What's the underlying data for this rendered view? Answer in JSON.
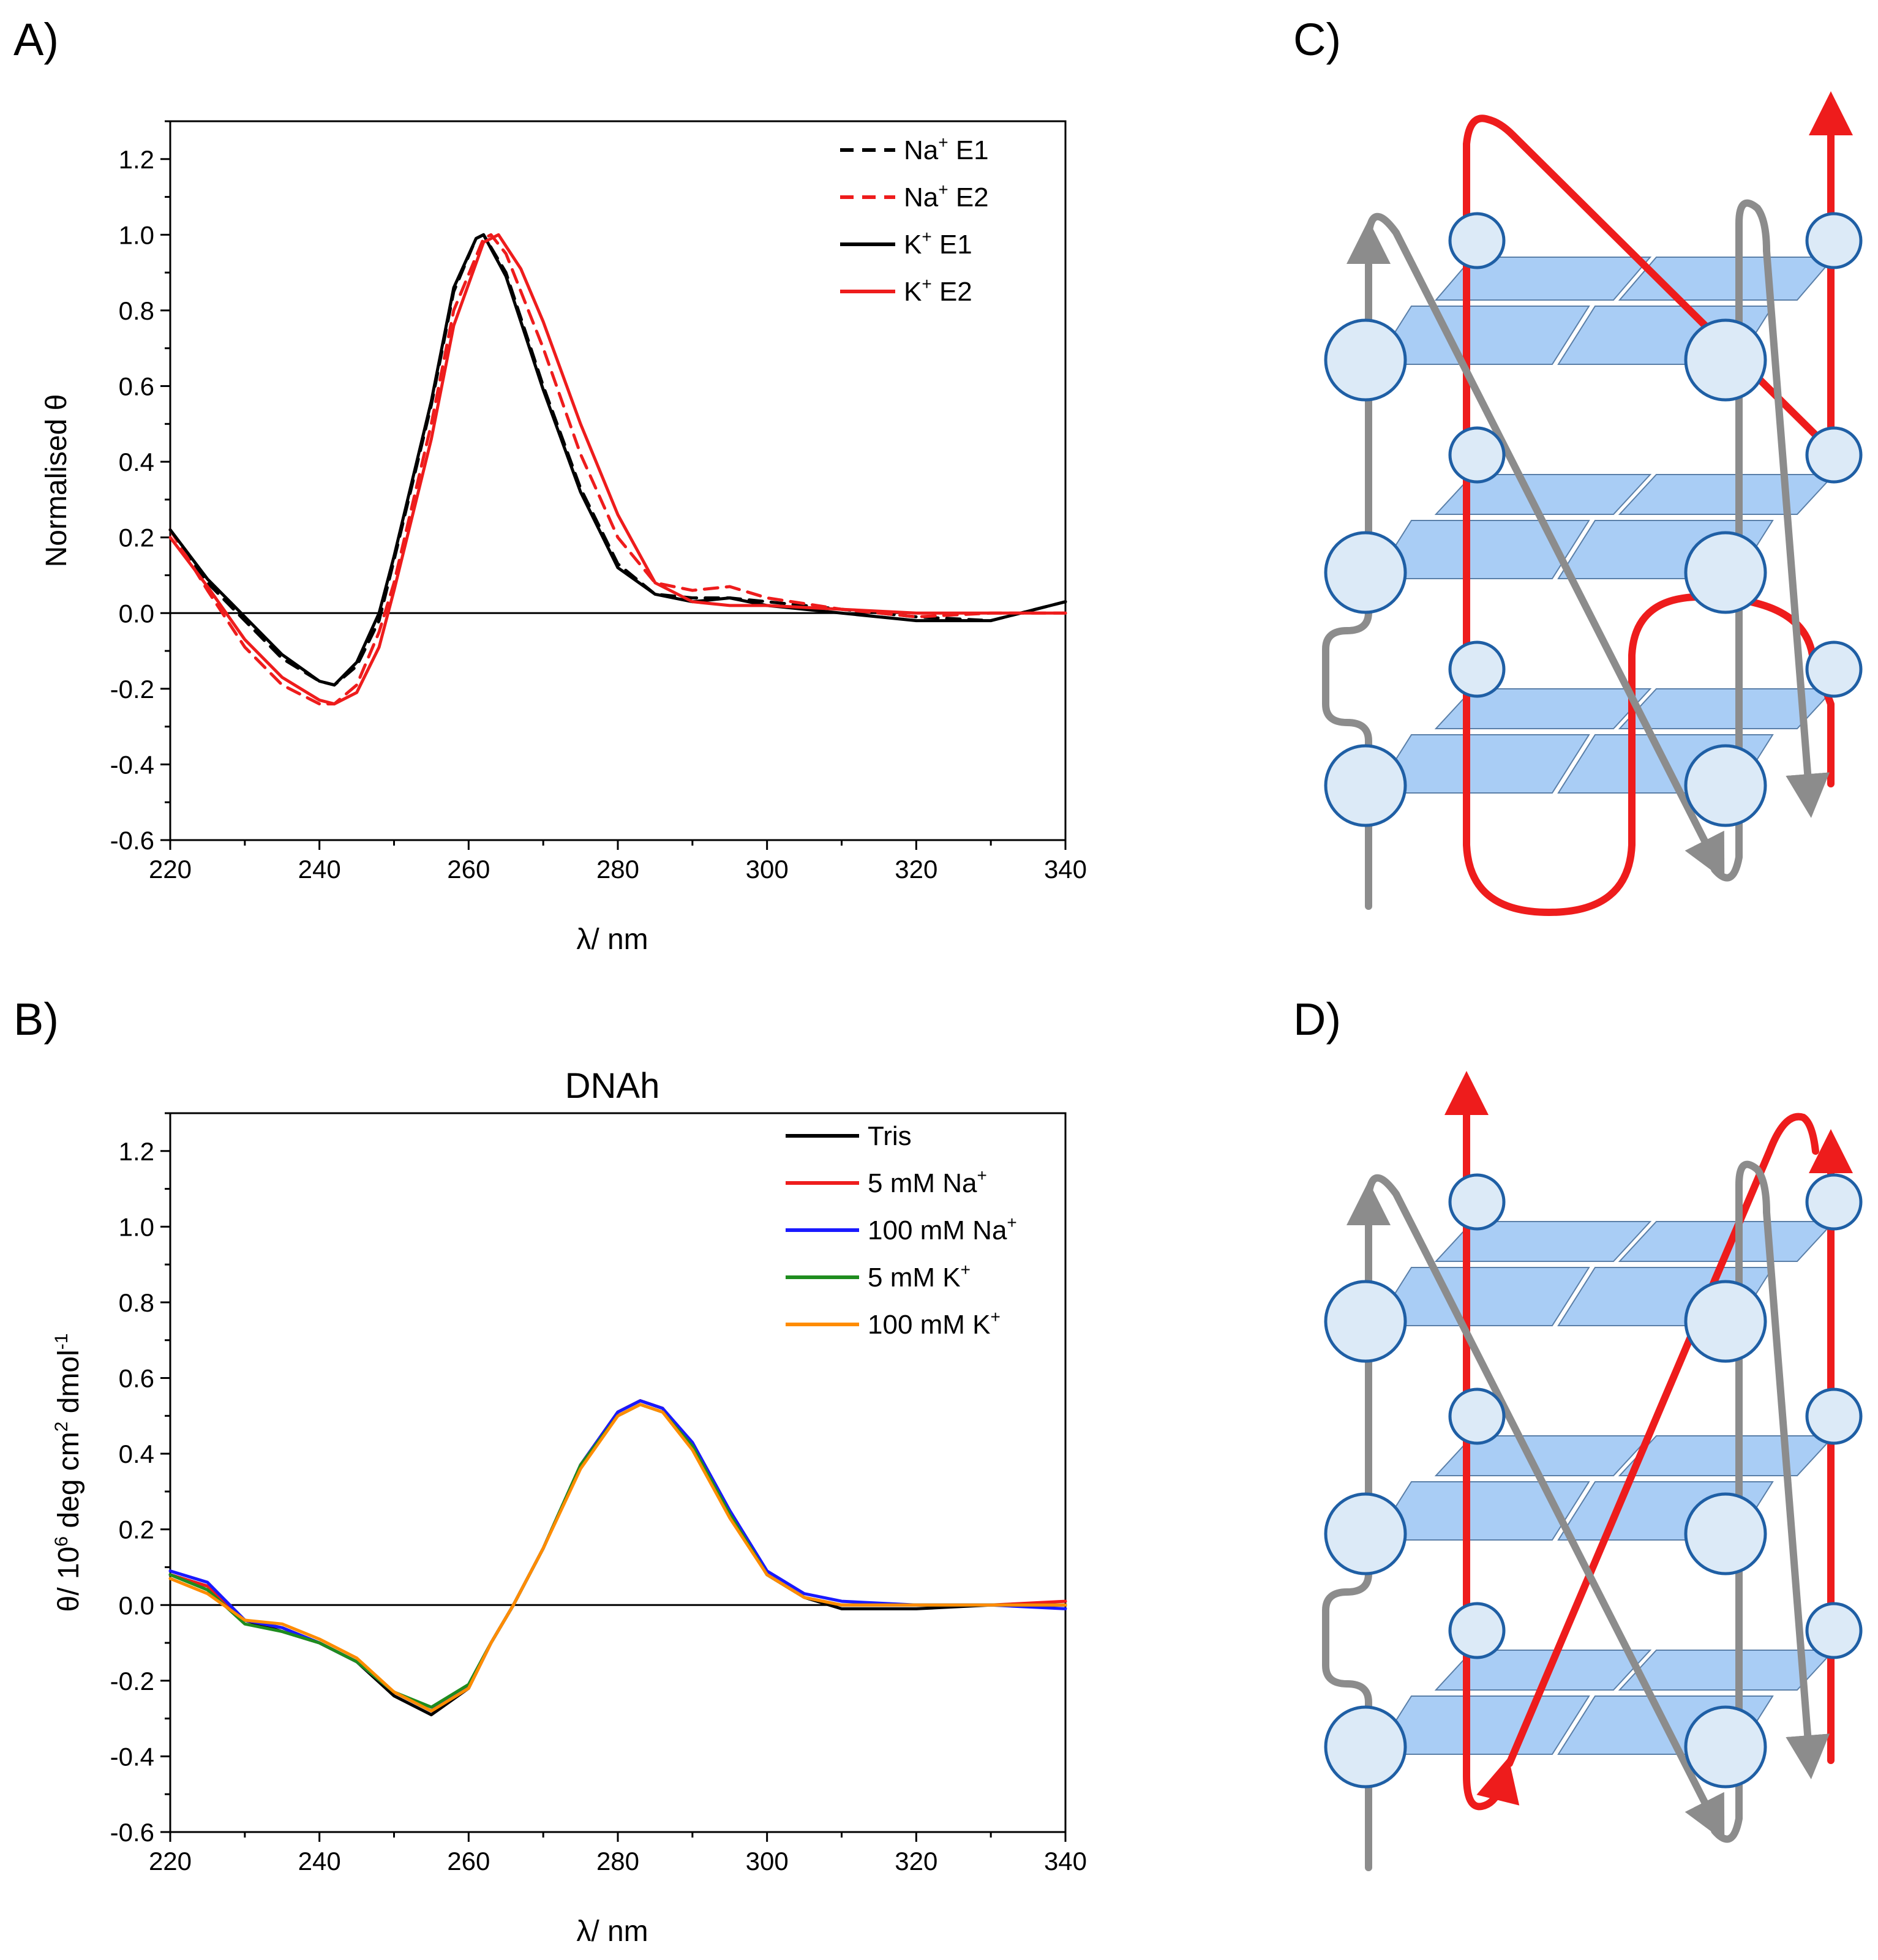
{
  "panels": {
    "a": "A)",
    "b": "B)",
    "c": "C)",
    "d": "D)"
  },
  "colors": {
    "black": "#000000",
    "red": "#ee1c1c",
    "blue": "#1a1aff",
    "green": "#1e8c1e",
    "orange": "#ff8c00",
    "gray": "#8c8c8c",
    "plate": "#a9cdf5",
    "node_fill": "#dceaf7",
    "node_stroke": "#1f5fa5"
  },
  "chart_data": [
    {
      "type": "line",
      "panel": "A)",
      "title": "",
      "xlabel": "λ/ nm",
      "ylabel": "Normalised θ",
      "xlim": [
        220,
        340
      ],
      "ylim": [
        -0.6,
        1.3
      ],
      "xticks": [
        "220",
        "240",
        "260",
        "280",
        "300",
        "320",
        "340"
      ],
      "yticks": [
        "-0.6",
        "-0.4",
        "-0.2",
        "0.0",
        "0.2",
        "0.4",
        "0.6",
        "0.8",
        "1.0",
        "1.2"
      ],
      "legend_position": "top-right",
      "series": [
        {
          "name": "Na⁺ E1",
          "name_base": "Na",
          "name_sup": "+",
          "name_tail": " E1",
          "color": "#000000",
          "dashed": true,
          "x": [
            220,
            225,
            230,
            235,
            240,
            242,
            245,
            248,
            250,
            255,
            258,
            261,
            262,
            265,
            270,
            275,
            280,
            285,
            290,
            295,
            300,
            310,
            320,
            330,
            340
          ],
          "y": [
            0.22,
            0.08,
            -0.02,
            -0.12,
            -0.18,
            -0.19,
            -0.14,
            -0.02,
            0.14,
            0.55,
            0.85,
            0.99,
            1.0,
            0.9,
            0.6,
            0.33,
            0.13,
            0.05,
            0.04,
            0.04,
            0.03,
            0.01,
            -0.01,
            -0.02,
            0.03
          ]
        },
        {
          "name": "Na⁺ E2",
          "name_base": "Na",
          "name_sup": "+",
          "name_tail": " E2",
          "color": "#ee1c1c",
          "dashed": true,
          "x": [
            220,
            225,
            230,
            235,
            240,
            242,
            245,
            248,
            250,
            255,
            258,
            262,
            263,
            265,
            270,
            275,
            280,
            285,
            290,
            295,
            300,
            310,
            320,
            330,
            340
          ],
          "y": [
            0.22,
            0.06,
            -0.09,
            -0.19,
            -0.24,
            -0.24,
            -0.19,
            -0.05,
            0.08,
            0.5,
            0.8,
            0.99,
            1.0,
            0.95,
            0.7,
            0.42,
            0.2,
            0.08,
            0.06,
            0.07,
            0.04,
            0.01,
            -0.01,
            0.0,
            0.0
          ]
        },
        {
          "name": "K⁺ E1",
          "name_base": "K",
          "name_sup": "+",
          "name_tail": " E1",
          "color": "#000000",
          "dashed": false,
          "x": [
            220,
            225,
            230,
            235,
            240,
            242,
            245,
            248,
            250,
            255,
            258,
            261,
            262,
            265,
            270,
            275,
            280,
            285,
            290,
            295,
            300,
            310,
            320,
            330,
            340
          ],
          "y": [
            0.22,
            0.09,
            -0.01,
            -0.11,
            -0.18,
            -0.19,
            -0.13,
            0.0,
            0.15,
            0.56,
            0.86,
            0.99,
            1.0,
            0.89,
            0.59,
            0.32,
            0.12,
            0.05,
            0.03,
            0.04,
            0.02,
            0.0,
            -0.02,
            -0.02,
            0.03
          ]
        },
        {
          "name": "K⁺ E2",
          "name_base": "K",
          "name_sup": "+",
          "name_tail": " E2",
          "color": "#ee1c1c",
          "dashed": false,
          "x": [
            220,
            225,
            230,
            235,
            240,
            242,
            245,
            248,
            250,
            255,
            258,
            262,
            264,
            267,
            270,
            275,
            280,
            285,
            290,
            295,
            300,
            310,
            320,
            330,
            340
          ],
          "y": [
            0.2,
            0.07,
            -0.07,
            -0.17,
            -0.23,
            -0.24,
            -0.21,
            -0.09,
            0.06,
            0.46,
            0.76,
            0.98,
            1.0,
            0.91,
            0.77,
            0.5,
            0.26,
            0.08,
            0.03,
            0.02,
            0.02,
            0.01,
            0.0,
            0.0,
            0.0
          ]
        }
      ]
    },
    {
      "type": "line",
      "panel": "B)",
      "title": "DNAh",
      "xlabel": "λ/ nm",
      "ylabel_parts": {
        "a": "θ/ 10",
        "b": "6",
        "c": " deg cm",
        "d": "2",
        "e": " dmol",
        "f": "-1"
      },
      "ylabel": "θ/ 10⁶ deg cm² dmol⁻¹",
      "xlim": [
        220,
        340
      ],
      "ylim": [
        -0.6,
        1.3
      ],
      "xticks": [
        "220",
        "240",
        "260",
        "280",
        "300",
        "320",
        "340"
      ],
      "yticks": [
        "-0.6",
        "-0.4",
        "-0.2",
        "0.0",
        "0.2",
        "0.4",
        "0.6",
        "0.8",
        "1.0",
        "1.2"
      ],
      "legend_position": "top-right",
      "series": [
        {
          "name": "Tris",
          "name_base": "Tris",
          "name_sup": "",
          "name_tail": "",
          "color": "#000000",
          "dashed": false,
          "x": [
            220,
            225,
            230,
            235,
            240,
            245,
            250,
            255,
            260,
            263,
            266,
            270,
            275,
            280,
            283,
            286,
            290,
            295,
            300,
            305,
            310,
            320,
            330,
            340
          ],
          "y": [
            0.08,
            0.05,
            -0.04,
            -0.07,
            -0.1,
            -0.15,
            -0.24,
            -0.29,
            -0.22,
            -0.1,
            0.0,
            0.15,
            0.37,
            0.51,
            0.54,
            0.52,
            0.42,
            0.24,
            0.08,
            0.02,
            -0.01,
            -0.01,
            0.0,
            0.0
          ]
        },
        {
          "name": "5 mM Na⁺",
          "name_base": "5 mM Na",
          "name_sup": "+",
          "name_tail": "",
          "color": "#ee1c1c",
          "dashed": false,
          "x": [
            220,
            225,
            230,
            235,
            240,
            245,
            250,
            255,
            260,
            263,
            266,
            270,
            275,
            280,
            283,
            286,
            290,
            295,
            300,
            305,
            310,
            320,
            330,
            340
          ],
          "y": [
            0.08,
            0.05,
            -0.04,
            -0.06,
            -0.1,
            -0.15,
            -0.23,
            -0.28,
            -0.22,
            -0.1,
            0.0,
            0.15,
            0.37,
            0.51,
            0.54,
            0.52,
            0.42,
            0.24,
            0.08,
            0.02,
            0.0,
            0.0,
            0.0,
            0.01
          ]
        },
        {
          "name": "100 mM Na⁺",
          "name_base": "100 mM Na",
          "name_sup": "+",
          "name_tail": "",
          "color": "#1a1aff",
          "dashed": false,
          "x": [
            220,
            225,
            230,
            235,
            240,
            245,
            250,
            255,
            260,
            263,
            266,
            270,
            275,
            280,
            283,
            286,
            290,
            295,
            300,
            305,
            310,
            320,
            330,
            340
          ],
          "y": [
            0.09,
            0.06,
            -0.04,
            -0.06,
            -0.1,
            -0.15,
            -0.23,
            -0.28,
            -0.21,
            -0.1,
            0.0,
            0.15,
            0.37,
            0.51,
            0.54,
            0.52,
            0.43,
            0.25,
            0.09,
            0.03,
            0.01,
            0.0,
            0.0,
            -0.01
          ]
        },
        {
          "name": "5 mM K⁺",
          "name_base": "5 mM K",
          "name_sup": "+",
          "name_tail": "",
          "color": "#1e8c1e",
          "dashed": false,
          "x": [
            220,
            225,
            230,
            235,
            240,
            245,
            250,
            255,
            260,
            263,
            266,
            270,
            275,
            280,
            283,
            286,
            290,
            295,
            300,
            305,
            310,
            320,
            330,
            340
          ],
          "y": [
            0.08,
            0.04,
            -0.05,
            -0.07,
            -0.1,
            -0.15,
            -0.23,
            -0.27,
            -0.21,
            -0.1,
            0.0,
            0.15,
            0.37,
            0.5,
            0.53,
            0.51,
            0.42,
            0.24,
            0.08,
            0.02,
            0.0,
            0.0,
            0.0,
            0.0
          ]
        },
        {
          "name": "100 mM K⁺",
          "name_base": "100 mM K",
          "name_sup": "+",
          "name_tail": "",
          "color": "#ff8c00",
          "dashed": false,
          "x": [
            220,
            225,
            230,
            235,
            240,
            245,
            250,
            255,
            260,
            263,
            266,
            270,
            275,
            280,
            283,
            286,
            290,
            295,
            300,
            305,
            310,
            320,
            330,
            340
          ],
          "y": [
            0.07,
            0.03,
            -0.04,
            -0.05,
            -0.09,
            -0.14,
            -0.23,
            -0.28,
            -0.22,
            -0.1,
            0.0,
            0.15,
            0.36,
            0.5,
            0.53,
            0.51,
            0.41,
            0.23,
            0.08,
            0.02,
            0.0,
            0.0,
            0.0,
            0.0
          ]
        }
      ]
    }
  ]
}
